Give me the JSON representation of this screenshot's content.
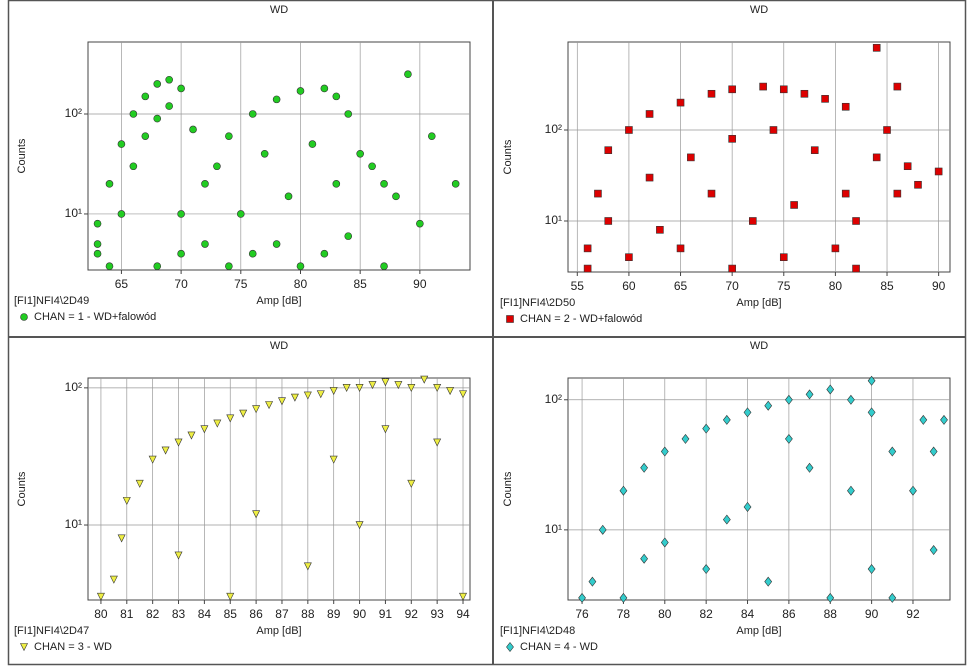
{
  "chart_data": [
    {
      "type": "scatter",
      "title": "WD",
      "x_label": "Amp [dB]",
      "y_label": "Counts",
      "source": "[FI1]NFI4\\2D49",
      "yscale": "log",
      "grid": true,
      "marker": "circle",
      "xlim": [
        62.2,
        94.2
      ],
      "ylim": [
        2.75,
        525
      ],
      "xticks": [
        65,
        70,
        75,
        80,
        85,
        90
      ],
      "yticks": [
        {
          "value": 10,
          "label": "10¹"
        },
        {
          "value": 100,
          "label": "10²"
        }
      ],
      "series": [
        {
          "name": "CHAN = 1 - WD+falowód",
          "color": "#22cc22",
          "x": [
            63,
            63,
            64,
            65,
            66,
            67,
            68,
            69,
            65,
            66,
            67,
            68,
            69,
            70,
            63,
            64,
            68,
            70,
            72,
            74,
            76,
            78,
            80,
            82,
            84,
            72,
            74,
            76,
            78,
            80,
            82,
            83,
            84,
            85,
            70,
            73,
            77,
            81,
            86,
            87,
            88,
            90,
            89,
            93,
            91,
            87,
            75,
            79,
            83,
            71
          ],
          "values": [
            4,
            8,
            20,
            50,
            100,
            150,
            200,
            220,
            10,
            30,
            60,
            90,
            120,
            180,
            5,
            3,
            3,
            4,
            5,
            3,
            4,
            5,
            3,
            4,
            6,
            20,
            60,
            100,
            140,
            170,
            180,
            150,
            100,
            40,
            10,
            30,
            40,
            50,
            30,
            20,
            15,
            8,
            250,
            20,
            60,
            3,
            10,
            15,
            20,
            70
          ]
        }
      ]
    },
    {
      "type": "scatter",
      "title": "WD",
      "x_label": "Amp [dB]",
      "y_label": "Counts",
      "source": "[FI1]NFI4\\2D50",
      "yscale": "log",
      "grid": true,
      "marker": "square",
      "xlim": [
        54.1,
        91.1
      ],
      "ylim": [
        2.75,
        927
      ],
      "xticks": [
        55,
        60,
        65,
        70,
        75,
        80,
        85,
        90
      ],
      "yticks": [
        {
          "value": 10,
          "label": "10¹"
        },
        {
          "value": 100,
          "label": "10²"
        }
      ],
      "series": [
        {
          "name": "CHAN = 2 - WD+falowód",
          "color": "#dd0000",
          "x": [
            56,
            56,
            57,
            58,
            60,
            62,
            65,
            68,
            70,
            73,
            75,
            77,
            79,
            81,
            82,
            80,
            75,
            70,
            65,
            60,
            58,
            62,
            66,
            70,
            74,
            78,
            81,
            82,
            84,
            85,
            86,
            87,
            88,
            90,
            84,
            86,
            68,
            72,
            76,
            63
          ],
          "values": [
            3,
            5,
            20,
            60,
            100,
            150,
            200,
            250,
            280,
            300,
            280,
            250,
            220,
            180,
            3,
            5,
            4,
            3,
            5,
            4,
            10,
            30,
            50,
            80,
            100,
            60,
            20,
            10,
            800,
            100,
            300,
            40,
            25,
            35,
            50,
            20,
            20,
            10,
            15,
            8
          ]
        }
      ]
    },
    {
      "type": "scatter",
      "title": "WD",
      "x_label": "Amp [dB]",
      "y_label": "Counts",
      "source": "[FI1]NFI4\\2D47",
      "yscale": "log",
      "grid": true,
      "marker": "triangle-down",
      "xlim": [
        79.5,
        94.27
      ],
      "ylim": [
        2.84,
        118
      ],
      "xticks": [
        80,
        81,
        82,
        83,
        84,
        85,
        86,
        87,
        88,
        89,
        90,
        91,
        92,
        93,
        94
      ],
      "yticks": [
        {
          "value": 10,
          "label": "10¹"
        },
        {
          "value": 100,
          "label": "10²"
        }
      ],
      "series": [
        {
          "name": "CHAN = 3 - WD",
          "color": "#eeee44",
          "x": [
            80,
            80.5,
            80.8,
            81,
            81.5,
            82,
            82.5,
            83,
            83.5,
            84,
            84.5,
            85,
            85.5,
            86,
            86.5,
            87,
            87.5,
            88,
            88.5,
            89,
            89.5,
            90,
            90.5,
            91,
            91.5,
            92,
            92.5,
            93,
            93.5,
            94,
            85,
            88,
            90,
            92,
            94,
            83,
            86,
            89,
            91,
            93
          ],
          "values": [
            3,
            4,
            8,
            15,
            20,
            30,
            35,
            40,
            45,
            50,
            55,
            60,
            65,
            70,
            75,
            80,
            85,
            88,
            90,
            95,
            100,
            100,
            105,
            110,
            105,
            100,
            115,
            100,
            95,
            90,
            3,
            5,
            10,
            20,
            3,
            6,
            12,
            30,
            50,
            40
          ]
        }
      ]
    },
    {
      "type": "scatter",
      "title": "WD",
      "x_label": "Amp [dB]",
      "y_label": "Counts",
      "source": "[FI1]NFI4\\2D48",
      "yscale": "log",
      "grid": true,
      "marker": "diamond",
      "xlim": [
        75.32,
        93.79
      ],
      "ylim": [
        2.89,
        147
      ],
      "xticks": [
        76,
        78,
        80,
        82,
        84,
        86,
        88,
        90,
        92
      ],
      "yticks": [
        {
          "value": 10,
          "label": "10¹"
        },
        {
          "value": 100,
          "label": "10²"
        }
      ],
      "series": [
        {
          "name": "CHAN = 4 - WD",
          "color": "#33cccc",
          "x": [
            76,
            77,
            78,
            79,
            80,
            81,
            82,
            83,
            84,
            85,
            86,
            87,
            88,
            89,
            90,
            91,
            92,
            92.5,
            93,
            93.5,
            93,
            90,
            88,
            85,
            82,
            79,
            90,
            91,
            84,
            87,
            89,
            80,
            83,
            86,
            76.5,
            78
          ],
          "values": [
            3,
            10,
            20,
            30,
            40,
            50,
            60,
            70,
            80,
            90,
            100,
            110,
            120,
            100,
            80,
            40,
            20,
            70,
            40,
            70,
            7,
            140,
            3,
            4,
            5,
            6,
            5,
            3,
            15,
            30,
            20,
            8,
            12,
            50,
            4,
            3
          ]
        }
      ]
    }
  ]
}
